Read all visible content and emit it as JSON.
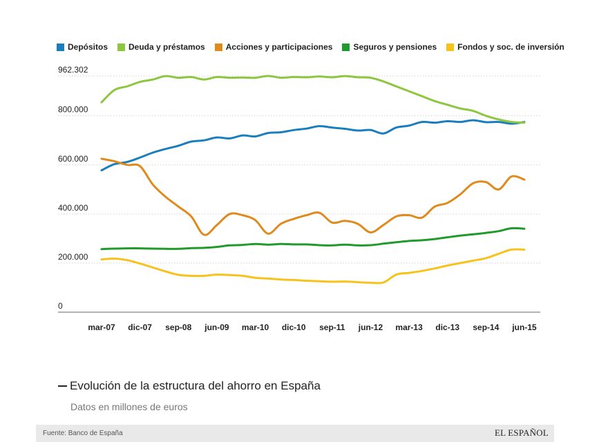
{
  "chart_data": {
    "type": "line",
    "title": "Evolución de la estructura del ahorro en España",
    "subtitle": "Datos en millones de euros",
    "source": "Fuente: Banco de España",
    "brand": "EL ESPAÑOL",
    "ylim": [
      0,
      962302
    ],
    "yticks": [
      {
        "value": 0,
        "label": "0"
      },
      {
        "value": 200000,
        "label": "200.000"
      },
      {
        "value": 400000,
        "label": "400.000"
      },
      {
        "value": 600000,
        "label": "600.000"
      },
      {
        "value": 800000,
        "label": "800.000"
      },
      {
        "value": 962302,
        "label": "962.302"
      }
    ],
    "x_range": [
      0,
      33
    ],
    "x_ticks": [
      {
        "index": 0,
        "label": "mar-07"
      },
      {
        "index": 3,
        "label": "dic-07"
      },
      {
        "index": 6,
        "label": "sep-08"
      },
      {
        "index": 9,
        "label": "jun-09"
      },
      {
        "index": 12,
        "label": "mar-10"
      },
      {
        "index": 15,
        "label": "dic-10"
      },
      {
        "index": 18,
        "label": "sep-11"
      },
      {
        "index": 21,
        "label": "jun-12"
      },
      {
        "index": 24,
        "label": "mar-13"
      },
      {
        "index": 27,
        "label": "dic-13"
      },
      {
        "index": 30,
        "label": "sep-14"
      },
      {
        "index": 33,
        "label": "jun-15"
      }
    ],
    "series": [
      {
        "name": "Depósitos",
        "color": "#1a7dbd",
        "values": [
          578000,
          603000,
          612000,
          630000,
          650000,
          665000,
          678000,
          695000,
          700000,
          712000,
          708000,
          720000,
          716000,
          730000,
          733000,
          742000,
          748000,
          758000,
          752000,
          747000,
          740000,
          742000,
          728000,
          752000,
          760000,
          775000,
          772000,
          778000,
          775000,
          782000,
          774000,
          775000,
          768000,
          775000
        ]
      },
      {
        "name": "Deuda y préstamos",
        "color": "#8dc63f",
        "values": [
          855000,
          905000,
          920000,
          938000,
          948000,
          962000,
          955000,
          958000,
          948000,
          958000,
          955000,
          956000,
          955000,
          962302,
          955000,
          958000,
          957000,
          960000,
          957000,
          962000,
          957000,
          955000,
          940000,
          920000,
          900000,
          880000,
          860000,
          845000,
          830000,
          820000,
          800000,
          785000,
          775000,
          772000
        ]
      },
      {
        "name": "Acciones y participaciones",
        "color": "#e08a1e",
        "values": [
          625000,
          615000,
          600000,
          595000,
          520000,
          470000,
          430000,
          390000,
          315000,
          355000,
          400000,
          395000,
          375000,
          320000,
          360000,
          380000,
          395000,
          405000,
          365000,
          372000,
          360000,
          325000,
          355000,
          390000,
          395000,
          385000,
          430000,
          445000,
          480000,
          525000,
          530000,
          500000,
          553000,
          540000
        ]
      },
      {
        "name": "Seguros y pensiones",
        "color": "#1f9a2b",
        "values": [
          257000,
          259000,
          260000,
          260000,
          259000,
          258000,
          258000,
          261000,
          262000,
          266000,
          272000,
          274000,
          278000,
          275000,
          278000,
          276000,
          276000,
          273000,
          272000,
          275000,
          272000,
          273000,
          279000,
          285000,
          290000,
          293000,
          298000,
          305000,
          312000,
          317000,
          323000,
          330000,
          342000,
          340000
        ]
      },
      {
        "name": "Fondos y soc. de inversión",
        "color": "#f7c21c",
        "values": [
          215000,
          218000,
          212000,
          198000,
          182000,
          166000,
          152000,
          148000,
          148000,
          153000,
          151000,
          148000,
          140000,
          137000,
          133000,
          131000,
          128000,
          126000,
          124000,
          125000,
          122000,
          120000,
          121000,
          153000,
          160000,
          168000,
          178000,
          190000,
          200000,
          210000,
          220000,
          238000,
          255000,
          255000
        ]
      }
    ]
  }
}
